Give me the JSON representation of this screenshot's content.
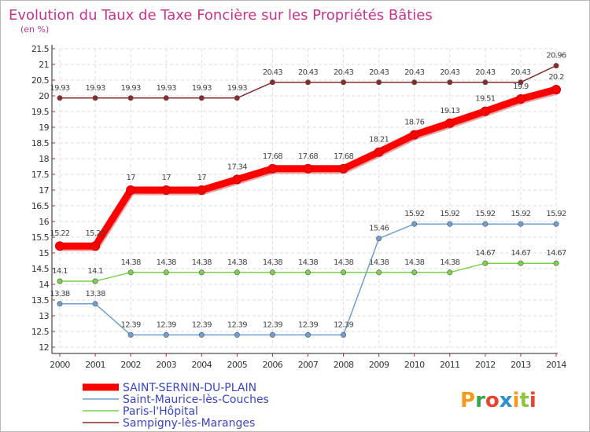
{
  "chart_data": {
    "type": "line",
    "title": "Evolution du Taux de Taxe Foncière sur les Propriétés Bâties",
    "subtitle": "(en %)",
    "x": [
      "2000",
      "2001",
      "2002",
      "2003",
      "2004",
      "2005",
      "2006",
      "2007",
      "2008",
      "2009",
      "2010",
      "2011",
      "2012",
      "2013",
      "2014"
    ],
    "ylim": [
      12,
      21.5
    ],
    "yticks": [
      "12",
      "12.5",
      "13",
      "13.5",
      "14",
      "14.5",
      "15",
      "15.5",
      "16",
      "16.5",
      "17",
      "17.5",
      "18",
      "18.5",
      "19",
      "19.5",
      "20",
      "20.5",
      "21",
      "21.5"
    ],
    "grid": true,
    "legend_position": "bottom-left",
    "series": [
      {
        "name": "Sampigny-lès-Maranges",
        "color": "#8b2a2a",
        "values": [
          19.93,
          19.93,
          19.93,
          19.93,
          19.93,
          19.93,
          20.43,
          20.43,
          20.43,
          20.43,
          20.43,
          20.43,
          20.43,
          20.43,
          20.96
        ],
        "labels": [
          "19.93",
          "19.93",
          "19.93",
          "19.93",
          "19.93",
          "19.93",
          "20.43",
          "20.43",
          "20.43",
          "20.43",
          "20.43",
          "20.43",
          "20.43",
          "20.43",
          "20.96"
        ]
      },
      {
        "name": "Paris-l'Hôpital",
        "color": "#7ad14a",
        "values": [
          14.1,
          14.1,
          14.38,
          14.38,
          14.38,
          14.38,
          14.38,
          14.38,
          14.38,
          14.38,
          14.38,
          14.38,
          14.67,
          14.67,
          14.67
        ],
        "labels": [
          "14.1",
          "14.1",
          "14.38",
          "14.38",
          "14.38",
          "14.38",
          "14.38",
          "14.38",
          "14.38",
          "14.38",
          "14.38",
          "14.38",
          "14.67",
          "14.67",
          "14.67"
        ]
      },
      {
        "name": "Saint-Maurice-lès-Couches",
        "color": "#6f9fd0",
        "values": [
          13.38,
          13.38,
          12.39,
          12.39,
          12.39,
          12.39,
          12.39,
          12.39,
          12.39,
          15.46,
          15.92,
          15.92,
          15.92,
          15.92,
          15.92
        ],
        "labels": [
          "13.38",
          "13.38",
          "12.39",
          "12.39",
          "12.39",
          "12.39",
          "12.39",
          "12.39",
          "12.39",
          "15.46",
          "15.92",
          "15.92",
          "15.92",
          "15.92",
          "15.92"
        ]
      },
      {
        "name": "SAINT-SERNIN-DU-PLAIN",
        "color": "#ff0000",
        "values": [
          15.22,
          15.22,
          17,
          17,
          17,
          17.34,
          17.68,
          17.68,
          17.68,
          18.21,
          18.76,
          19.13,
          19.51,
          19.9,
          20.2
        ],
        "labels": [
          "15.22",
          "15.22",
          "17",
          "17",
          "17",
          "17.34",
          "17.68",
          "17.68",
          "17.68",
          "18.21",
          "18.76",
          "19.13",
          "19.51",
          "19.9",
          "20.2"
        ]
      }
    ],
    "legend_order": [
      "SAINT-SERNIN-DU-PLAIN",
      "Saint-Maurice-lès-Couches",
      "Paris-l'Hôpital",
      "Sampigny-lès-Maranges"
    ]
  },
  "logo": {
    "letters": [
      "P",
      "r",
      "o",
      "x",
      "i",
      "t",
      "i"
    ],
    "colors": [
      "#f59a1c",
      "#3aa64a",
      "#e8442e",
      "#2d8fd0",
      "#f59a1c",
      "#8cc63f",
      "#e8442e"
    ]
  }
}
